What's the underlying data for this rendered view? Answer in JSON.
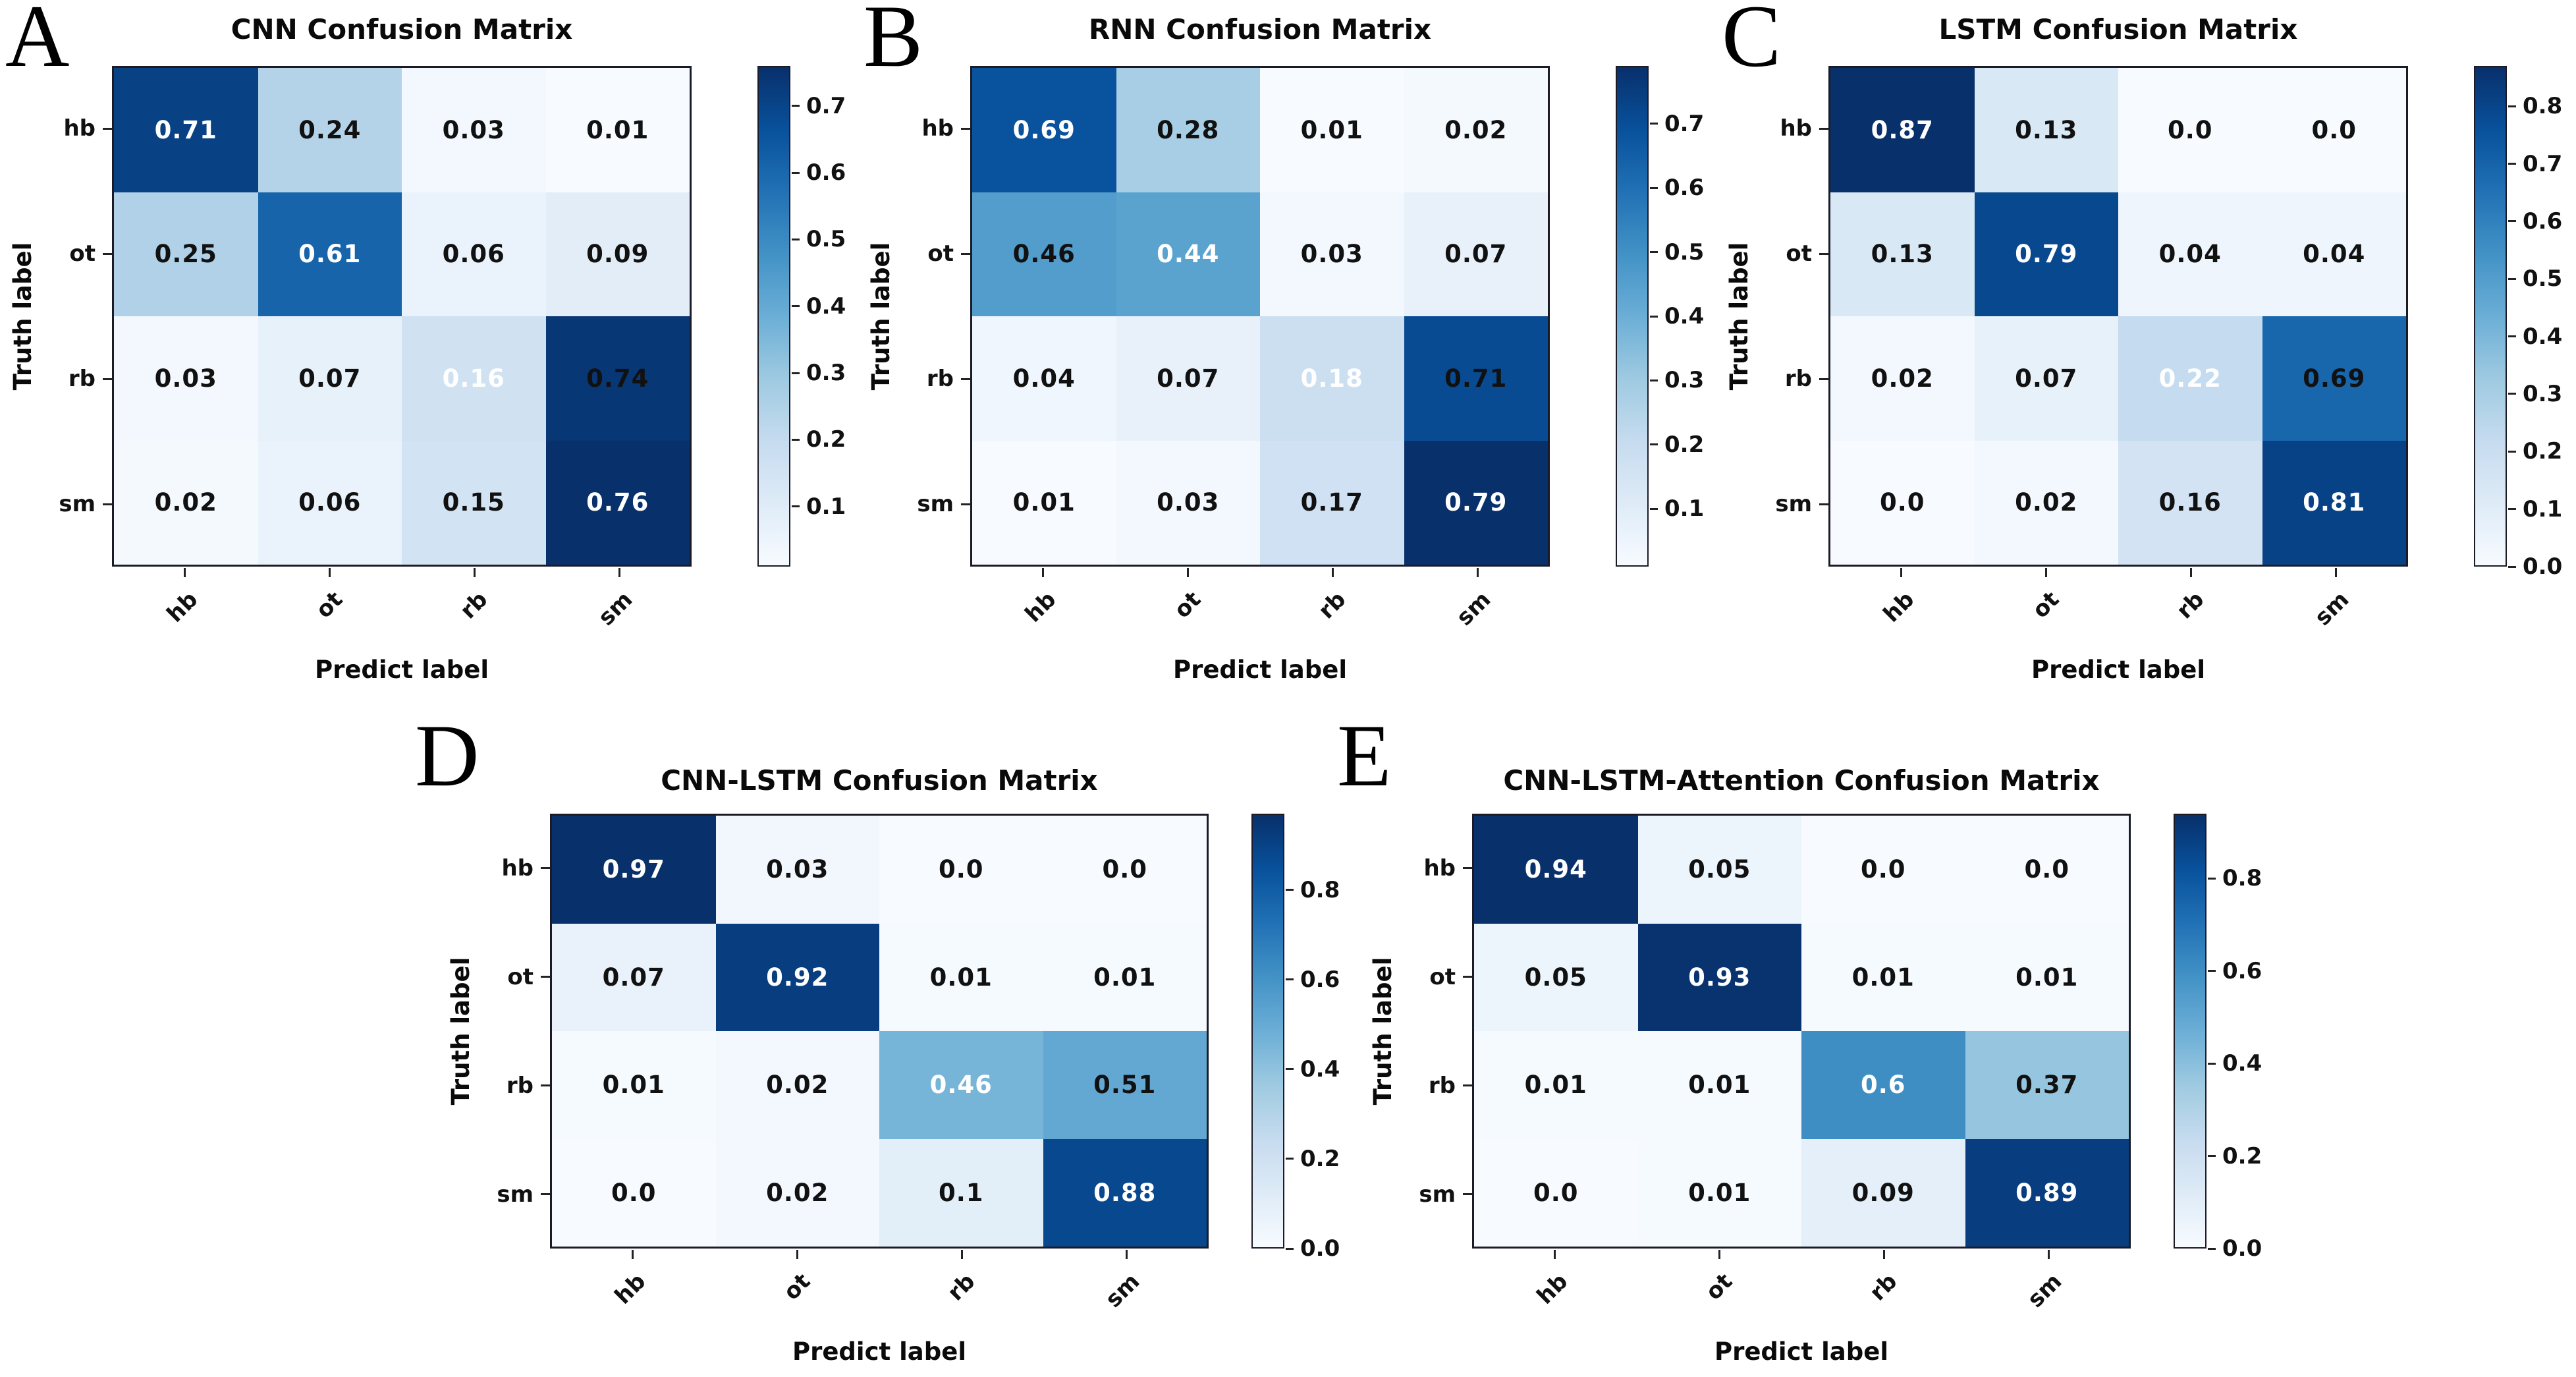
{
  "figure": {
    "background": "#ffffff",
    "colormap": "Blues",
    "accent_dark": "#08306b",
    "accent_light": "#f7fbff",
    "diagonal_text_color": "#ffffff",
    "offdiagonal_text_color": "#111111"
  },
  "chart_data": [
    {
      "type": "heatmap",
      "panel_letter": "A",
      "title": "CNN Confusion Matrix",
      "xlabel": "Predict label",
      "ylabel": "Truth label",
      "x_categories": [
        "hb",
        "ot",
        "rb",
        "sm"
      ],
      "y_categories": [
        "hb",
        "ot",
        "rb",
        "sm"
      ],
      "matrix": [
        [
          "0.71",
          "0.24",
          "0.03",
          "0.01"
        ],
        [
          "0.25",
          "0.61",
          "0.06",
          "0.09"
        ],
        [
          "0.03",
          "0.07",
          "0.16",
          "0.74"
        ],
        [
          "0.02",
          "0.06",
          "0.15",
          "0.76"
        ]
      ],
      "vmin": 0.01,
      "vmax": 0.76,
      "colorbar_ticks": [
        "0.1",
        "0.2",
        "0.3",
        "0.4",
        "0.5",
        "0.6",
        "0.7"
      ],
      "legend_position": "right",
      "grid": false
    },
    {
      "type": "heatmap",
      "panel_letter": "B",
      "title": "RNN Confusion Matrix",
      "xlabel": "Predict label",
      "ylabel": "Truth label",
      "x_categories": [
        "hb",
        "ot",
        "rb",
        "sm"
      ],
      "y_categories": [
        "hb",
        "ot",
        "rb",
        "sm"
      ],
      "matrix": [
        [
          "0.69",
          "0.28",
          "0.01",
          "0.02"
        ],
        [
          "0.46",
          "0.44",
          "0.03",
          "0.07"
        ],
        [
          "0.04",
          "0.07",
          "0.18",
          "0.71"
        ],
        [
          "0.01",
          "0.03",
          "0.17",
          "0.79"
        ]
      ],
      "vmin": 0.01,
      "vmax": 0.79,
      "colorbar_ticks": [
        "0.1",
        "0.2",
        "0.3",
        "0.4",
        "0.5",
        "0.6",
        "0.7"
      ],
      "legend_position": "right",
      "grid": false
    },
    {
      "type": "heatmap",
      "panel_letter": "C",
      "title": "LSTM Confusion Matrix",
      "xlabel": "Predict label",
      "ylabel": "Truth label",
      "x_categories": [
        "hb",
        "ot",
        "rb",
        "sm"
      ],
      "y_categories": [
        "hb",
        "ot",
        "rb",
        "sm"
      ],
      "matrix": [
        [
          "0.87",
          "0.13",
          "0.0",
          "0.0"
        ],
        [
          "0.13",
          "0.79",
          "0.04",
          "0.04"
        ],
        [
          "0.02",
          "0.07",
          "0.22",
          "0.69"
        ],
        [
          "0.0",
          "0.02",
          "0.16",
          "0.81"
        ]
      ],
      "vmin": 0.0,
      "vmax": 0.87,
      "colorbar_ticks": [
        "0.0",
        "0.1",
        "0.2",
        "0.3",
        "0.4",
        "0.5",
        "0.6",
        "0.7",
        "0.8"
      ],
      "legend_position": "right",
      "grid": false
    },
    {
      "type": "heatmap",
      "panel_letter": "D",
      "title": "CNN-LSTM Confusion Matrix",
      "xlabel": "Predict label",
      "ylabel": "Truth label",
      "x_categories": [
        "hb",
        "ot",
        "rb",
        "sm"
      ],
      "y_categories": [
        "hb",
        "ot",
        "rb",
        "sm"
      ],
      "matrix": [
        [
          "0.97",
          "0.03",
          "0.0",
          "0.0"
        ],
        [
          "0.07",
          "0.92",
          "0.01",
          "0.01"
        ],
        [
          "0.01",
          "0.02",
          "0.46",
          "0.51"
        ],
        [
          "0.0",
          "0.02",
          "0.1",
          "0.88"
        ]
      ],
      "vmin": 0.0,
      "vmax": 0.97,
      "colorbar_ticks": [
        "0.0",
        "0.2",
        "0.4",
        "0.6",
        "0.8"
      ],
      "legend_position": "right",
      "grid": false
    },
    {
      "type": "heatmap",
      "panel_letter": "E",
      "title": "CNN-LSTM-Attention Confusion Matrix",
      "xlabel": "Predict label",
      "ylabel": "Truth label",
      "x_categories": [
        "hb",
        "ot",
        "rb",
        "sm"
      ],
      "y_categories": [
        "hb",
        "ot",
        "rb",
        "sm"
      ],
      "matrix": [
        [
          "0.94",
          "0.05",
          "0.0",
          "0.0"
        ],
        [
          "0.05",
          "0.93",
          "0.01",
          "0.01"
        ],
        [
          "0.01",
          "0.01",
          "0.6",
          "0.37"
        ],
        [
          "0.0",
          "0.01",
          "0.09",
          "0.89"
        ]
      ],
      "vmin": 0.0,
      "vmax": 0.94,
      "colorbar_ticks": [
        "0.0",
        "0.2",
        "0.4",
        "0.6",
        "0.8"
      ],
      "legend_position": "right",
      "grid": false
    }
  ]
}
